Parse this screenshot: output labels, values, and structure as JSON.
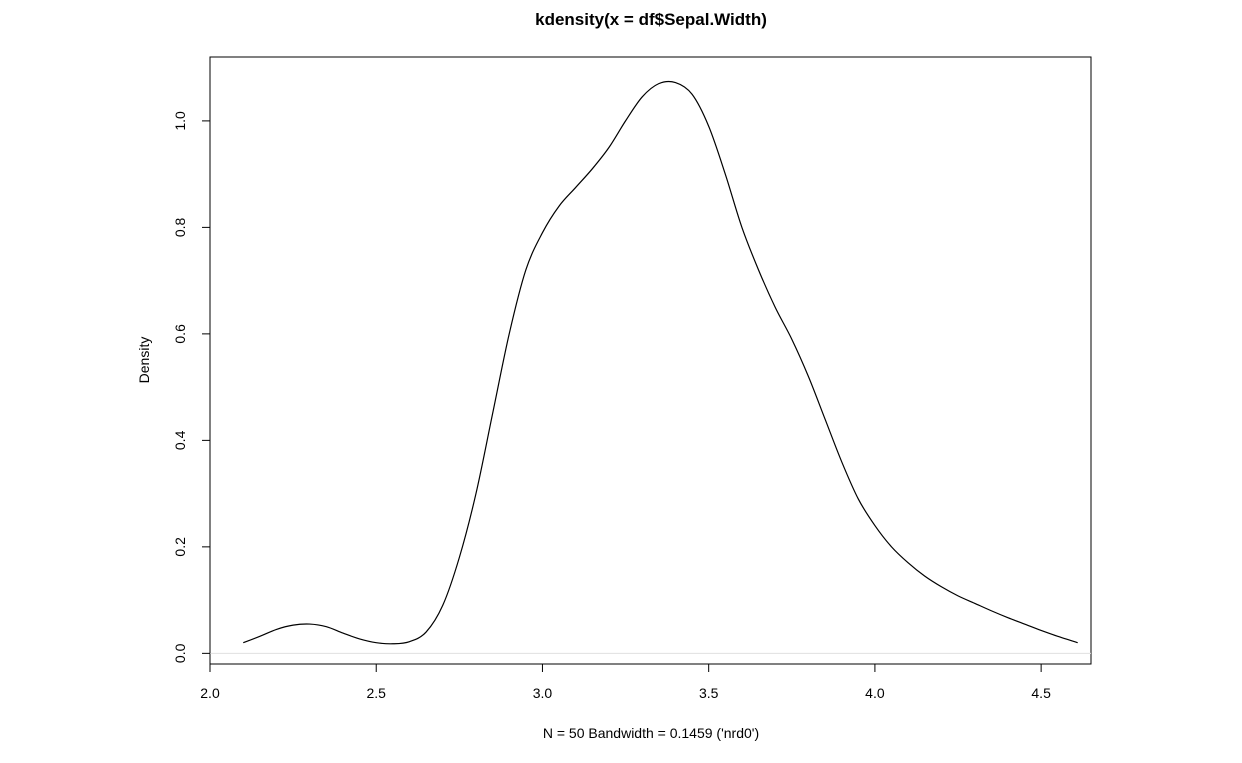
{
  "chart_data": {
    "type": "line",
    "title": "kdensity(x = df$Sepal.Width)",
    "xlabel": "N = 50   Bandwidth = 0.1459 ('nrd0')",
    "ylabel": "Density",
    "xlim": [
      2.0,
      4.65
    ],
    "ylim": [
      -0.02,
      1.12
    ],
    "xticks": [
      2.0,
      2.5,
      3.0,
      3.5,
      4.0,
      4.5
    ],
    "xtick_labels": [
      "2.0",
      "2.5",
      "3.0",
      "3.5",
      "4.0",
      "4.5"
    ],
    "yticks": [
      0.0,
      0.2,
      0.4,
      0.6,
      0.8,
      1.0
    ],
    "ytick_labels": [
      "0.0",
      "0.2",
      "0.4",
      "0.6",
      "0.8",
      "1.0"
    ],
    "grid": false,
    "baseline": 0.0,
    "line_color": "#000000",
    "baseline_color": "#e0e0e0",
    "series": [
      {
        "x": [
          2.1,
          2.15,
          2.2,
          2.25,
          2.3,
          2.35,
          2.4,
          2.45,
          2.5,
          2.55,
          2.6,
          2.65,
          2.7,
          2.75,
          2.8,
          2.85,
          2.9,
          2.95,
          3.0,
          3.05,
          3.1,
          3.15,
          3.2,
          3.25,
          3.3,
          3.35,
          3.4,
          3.45,
          3.5,
          3.55,
          3.6,
          3.65,
          3.7,
          3.75,
          3.8,
          3.85,
          3.9,
          3.95,
          4.0,
          4.05,
          4.1,
          4.15,
          4.2,
          4.25,
          4.3,
          4.35,
          4.4,
          4.45,
          4.5,
          4.55,
          4.61
        ],
        "y": [
          0.02,
          0.032,
          0.045,
          0.053,
          0.055,
          0.05,
          0.038,
          0.027,
          0.02,
          0.018,
          0.022,
          0.04,
          0.09,
          0.18,
          0.3,
          0.45,
          0.6,
          0.72,
          0.79,
          0.84,
          0.875,
          0.91,
          0.95,
          1.0,
          1.045,
          1.07,
          1.072,
          1.05,
          0.99,
          0.9,
          0.8,
          0.72,
          0.65,
          0.59,
          0.52,
          0.44,
          0.36,
          0.29,
          0.24,
          0.2,
          0.17,
          0.145,
          0.125,
          0.108,
          0.094,
          0.08,
          0.067,
          0.055,
          0.043,
          0.032,
          0.02
        ]
      }
    ]
  }
}
